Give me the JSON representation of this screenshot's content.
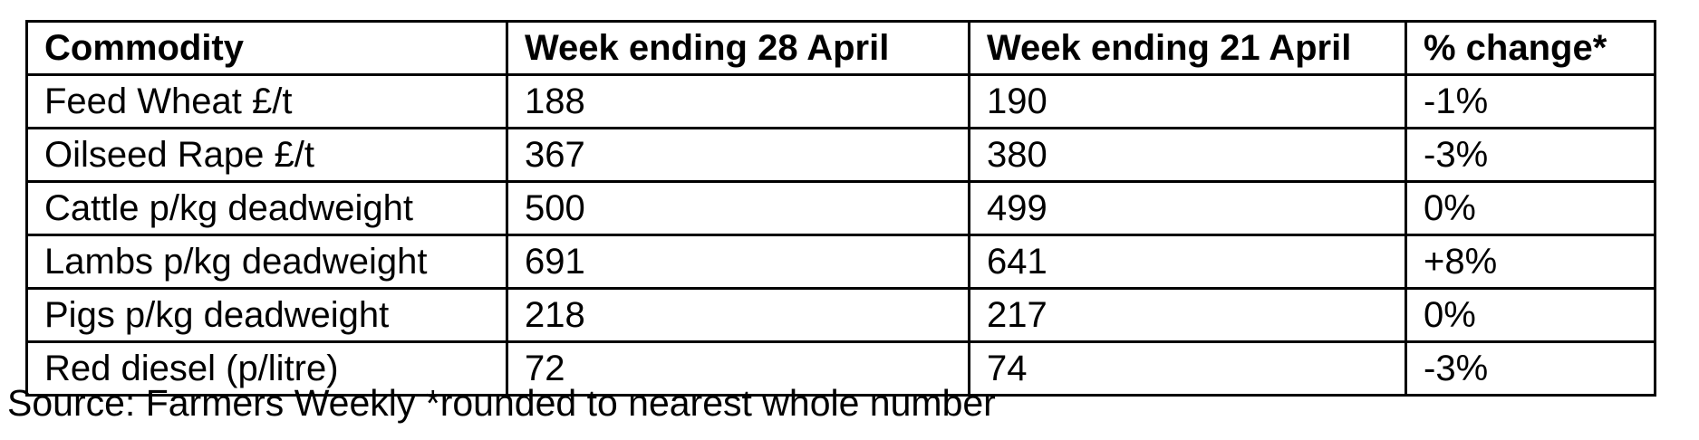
{
  "table": {
    "columns": [
      "Commodity",
      "Week ending 28 April",
      "Week ending 21 April",
      "% change*"
    ],
    "rows": [
      {
        "commodity": "Feed Wheat £/t",
        "week_ending_28_april": "188",
        "week_ending_21_april": "190",
        "pct_change": "-1%"
      },
      {
        "commodity": "Oilseed Rape £/t",
        "week_ending_28_april": "367",
        "week_ending_21_april": "380",
        "pct_change": "-3%"
      },
      {
        "commodity": "Cattle p/kg deadweight",
        "week_ending_28_april": "500",
        "week_ending_21_april": "499",
        "pct_change": "0%"
      },
      {
        "commodity": "Lambs p/kg deadweight",
        "week_ending_28_april": "691",
        "week_ending_21_april": "641",
        "pct_change": "+8%"
      },
      {
        "commodity": "Pigs p/kg deadweight",
        "week_ending_28_april": "218",
        "week_ending_21_april": "217",
        "pct_change": "0%"
      },
      {
        "commodity": "Red diesel (p/litre)",
        "week_ending_28_april": "72",
        "week_ending_21_april": "74",
        "pct_change": "-3%"
      }
    ]
  },
  "footer": {
    "source_note": "Source: Farmers Weekly *rounded to nearest whole number"
  },
  "colors": {
    "text": "#000000",
    "border": "#000000",
    "background": "#ffffff"
  }
}
